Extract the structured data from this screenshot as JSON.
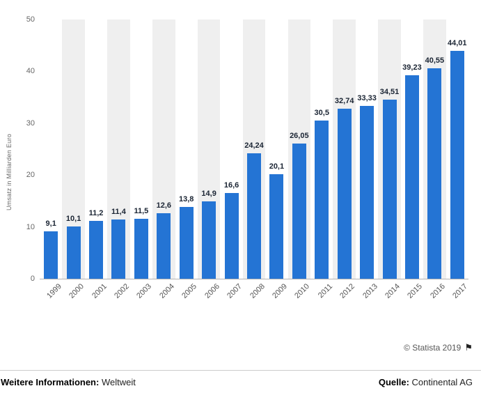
{
  "chart_data": {
    "type": "bar",
    "title": "",
    "xlabel": "",
    "ylabel": "Umsatz in Milliarden Euro",
    "categories": [
      "1999",
      "2000",
      "2001",
      "2002",
      "2003",
      "2004",
      "2005",
      "2006",
      "2007",
      "2008",
      "2009",
      "2010",
      "2011",
      "2012",
      "2013",
      "2014",
      "2015",
      "2016",
      "2017"
    ],
    "values": [
      9.1,
      10.1,
      11.2,
      11.4,
      11.5,
      12.6,
      13.8,
      14.9,
      16.6,
      24.24,
      20.1,
      26.05,
      30.5,
      32.74,
      33.33,
      34.51,
      39.23,
      40.55,
      44.01
    ],
    "value_labels": [
      "9,1",
      "10,1",
      "11,2",
      "11,4",
      "11,5",
      "12,6",
      "13,8",
      "14,9",
      "16,6",
      "24,24",
      "20,1",
      "26,05",
      "30,5",
      "32,74",
      "33,33",
      "34,51",
      "39,23",
      "40,55",
      "44,01"
    ],
    "ylim": [
      0,
      50
    ],
    "y_ticks": [
      0,
      10,
      20,
      30,
      40,
      50
    ],
    "grid": "alternating-vertical-bands",
    "legend": "none",
    "bar_color": "#2474d4",
    "label_color": "#1a2433",
    "stripe_color": "#efefef"
  },
  "footer": {
    "credit": "© Statista 2019",
    "flag_icon": "⚑",
    "info_label": "Weitere Informationen:",
    "info_value": "Weltweit",
    "source_label": "Quelle:",
    "source_value": "Continental AG"
  }
}
